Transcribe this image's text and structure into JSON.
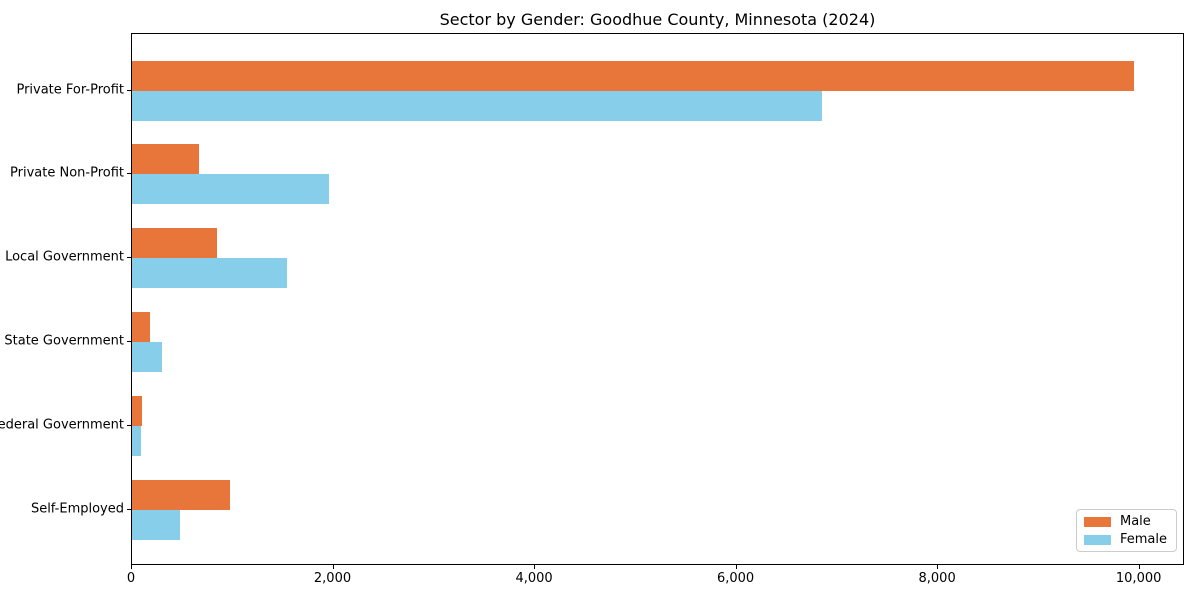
{
  "title": "Sector by Gender: Goodhue County, Minnesota (2024)",
  "colors": {
    "male": "#E8763B",
    "female": "#87CEEB",
    "axis": "#000000",
    "legend_border": "#cccccc",
    "background": "#ffffff"
  },
  "legend": {
    "position": "lower right",
    "entries": [
      {
        "label": "Male",
        "color": "#E8763B"
      },
      {
        "label": "Female",
        "color": "#87CEEB"
      }
    ]
  },
  "chart_data": {
    "type": "bar",
    "orientation": "horizontal",
    "title": "Sector by Gender: Goodhue County, Minnesota (2024)",
    "xlabel": "",
    "ylabel": "",
    "categories": [
      "Private For-Profit",
      "Private Non-Profit",
      "Local Government",
      "State Government",
      "Federal Government",
      "Self-Employed"
    ],
    "series": [
      {
        "name": "Male",
        "color": "#E8763B",
        "values": [
          9960,
          670,
          850,
          180,
          100,
          975
        ]
      },
      {
        "name": "Female",
        "color": "#87CEEB",
        "values": [
          6860,
          1960,
          1540,
          300,
          90,
          480
        ]
      }
    ],
    "xlim": [
      0,
      10450
    ],
    "xticks": [
      0,
      2000,
      4000,
      6000,
      8000,
      10000
    ],
    "xtick_labels": [
      "0",
      "2,000",
      "4,000",
      "6,000",
      "8,000",
      "10,000"
    ],
    "grid": false,
    "legend_position": "lower right"
  }
}
